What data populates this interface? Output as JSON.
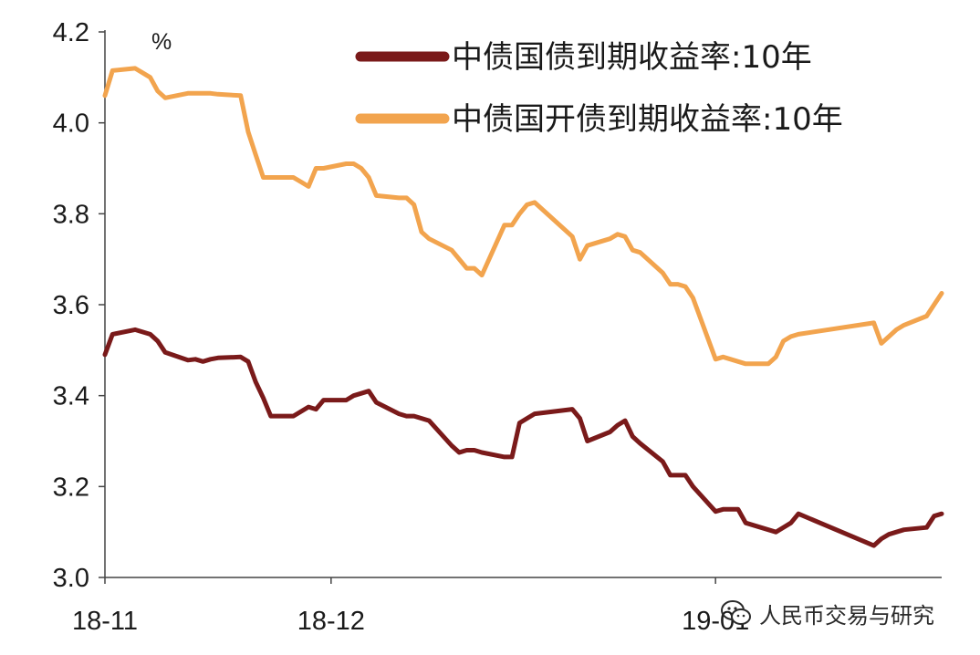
{
  "chart_data": {
    "type": "line",
    "unit": "%",
    "ylim": [
      3.0,
      4.2
    ],
    "yticks": [
      "3.0",
      "3.2",
      "3.4",
      "3.6",
      "3.8",
      "4.0",
      "4.2"
    ],
    "xticks": [
      "18-11",
      "18-12",
      "19-01"
    ],
    "legend_position": "top-right",
    "grid": false,
    "series": [
      {
        "name": "中债国债到期收益率:10年",
        "color": "#7a1a1a",
        "points": [
          [
            "2018-11-01",
            3.49
          ],
          [
            "2018-11-02",
            3.535
          ],
          [
            "2018-11-05",
            3.545
          ],
          [
            "2018-11-06",
            3.54
          ],
          [
            "2018-11-07",
            3.535
          ],
          [
            "2018-11-08",
            3.52
          ],
          [
            "2018-11-09",
            3.495
          ],
          [
            "2018-11-12",
            3.478
          ],
          [
            "2018-11-13",
            3.48
          ],
          [
            "2018-11-14",
            3.475
          ],
          [
            "2018-11-15",
            3.48
          ],
          [
            "2018-11-16",
            3.483
          ],
          [
            "2018-11-19",
            3.485
          ],
          [
            "2018-11-20",
            3.475
          ],
          [
            "2018-11-21",
            3.43
          ],
          [
            "2018-11-22",
            3.395
          ],
          [
            "2018-11-23",
            3.355
          ],
          [
            "2018-11-26",
            3.355
          ],
          [
            "2018-11-27",
            3.365
          ],
          [
            "2018-11-28",
            3.375
          ],
          [
            "2018-11-29",
            3.37
          ],
          [
            "2018-11-30",
            3.39
          ],
          [
            "2018-12-03",
            3.39
          ],
          [
            "2018-12-04",
            3.4
          ],
          [
            "2018-12-05",
            3.405
          ],
          [
            "2018-12-06",
            3.41
          ],
          [
            "2018-12-07",
            3.385
          ],
          [
            "2018-12-10",
            3.36
          ],
          [
            "2018-12-11",
            3.355
          ],
          [
            "2018-12-12",
            3.355
          ],
          [
            "2018-12-13",
            3.35
          ],
          [
            "2018-12-14",
            3.345
          ],
          [
            "2018-12-17",
            3.29
          ],
          [
            "2018-12-18",
            3.275
          ],
          [
            "2018-12-19",
            3.28
          ],
          [
            "2018-12-20",
            3.28
          ],
          [
            "2018-12-21",
            3.275
          ],
          [
            "2018-12-24",
            3.265
          ],
          [
            "2018-12-25",
            3.265
          ],
          [
            "2018-12-26",
            3.34
          ],
          [
            "2018-12-27",
            3.35
          ],
          [
            "2018-12-28",
            3.36
          ],
          [
            "2019-01-02",
            3.37
          ],
          [
            "2019-01-03",
            3.35
          ],
          [
            "2019-01-04",
            3.3
          ],
          [
            "2019-01-07",
            3.32
          ],
          [
            "2019-01-08",
            3.335
          ],
          [
            "2019-01-09",
            3.345
          ],
          [
            "2019-01-10",
            3.31
          ],
          [
            "2019-01-11",
            3.295
          ],
          [
            "2019-01-14",
            3.255
          ],
          [
            "2019-01-15",
            3.225
          ],
          [
            "2019-01-16",
            3.225
          ],
          [
            "2019-01-17",
            3.225
          ],
          [
            "2019-01-18",
            3.2
          ],
          [
            "2019-01-21",
            3.145
          ],
          [
            "2019-01-22",
            3.15
          ],
          [
            "2019-01-23",
            3.15
          ],
          [
            "2019-01-24",
            3.15
          ],
          [
            "2019-01-25",
            3.12
          ],
          [
            "2019-01-28",
            3.105
          ],
          [
            "2019-01-29",
            3.1
          ],
          [
            "2019-01-30",
            3.11
          ],
          [
            "2019-01-31",
            3.12
          ],
          [
            "2019-02-01",
            3.14
          ],
          [
            "2019-02-11",
            3.07
          ],
          [
            "2019-02-12",
            3.085
          ],
          [
            "2019-02-13",
            3.095
          ],
          [
            "2019-02-14",
            3.1
          ],
          [
            "2019-02-15",
            3.105
          ],
          [
            "2019-02-18",
            3.11
          ],
          [
            "2019-02-19",
            3.135
          ],
          [
            "2019-02-20",
            3.14
          ]
        ]
      },
      {
        "name": "中债国开债到期收益率:10年",
        "color": "#f2a44e",
        "points": [
          [
            "2018-11-01",
            4.06
          ],
          [
            "2018-11-02",
            4.115
          ],
          [
            "2018-11-05",
            4.12
          ],
          [
            "2018-11-06",
            4.11
          ],
          [
            "2018-11-07",
            4.1
          ],
          [
            "2018-11-08",
            4.07
          ],
          [
            "2018-11-09",
            4.055
          ],
          [
            "2018-11-12",
            4.065
          ],
          [
            "2018-11-13",
            4.065
          ],
          [
            "2018-11-14",
            4.065
          ],
          [
            "2018-11-15",
            4.065
          ],
          [
            "2018-11-16",
            4.063
          ],
          [
            "2018-11-19",
            4.06
          ],
          [
            "2018-11-20",
            3.98
          ],
          [
            "2018-11-21",
            3.93
          ],
          [
            "2018-11-22",
            3.88
          ],
          [
            "2018-11-23",
            3.88
          ],
          [
            "2018-11-26",
            3.88
          ],
          [
            "2018-11-27",
            3.87
          ],
          [
            "2018-11-28",
            3.86
          ],
          [
            "2018-11-29",
            3.9
          ],
          [
            "2018-11-30",
            3.9
          ],
          [
            "2018-12-03",
            3.91
          ],
          [
            "2018-12-04",
            3.91
          ],
          [
            "2018-12-05",
            3.9
          ],
          [
            "2018-12-06",
            3.88
          ],
          [
            "2018-12-07",
            3.84
          ],
          [
            "2018-12-10",
            3.835
          ],
          [
            "2018-12-11",
            3.835
          ],
          [
            "2018-12-12",
            3.82
          ],
          [
            "2018-12-13",
            3.76
          ],
          [
            "2018-12-14",
            3.745
          ],
          [
            "2018-12-17",
            3.72
          ],
          [
            "2018-12-18",
            3.7
          ],
          [
            "2018-12-19",
            3.68
          ],
          [
            "2018-12-20",
            3.68
          ],
          [
            "2018-12-21",
            3.665
          ],
          [
            "2018-12-24",
            3.775
          ],
          [
            "2018-12-25",
            3.775
          ],
          [
            "2018-12-26",
            3.8
          ],
          [
            "2018-12-27",
            3.82
          ],
          [
            "2018-12-28",
            3.825
          ],
          [
            "2019-01-02",
            3.75
          ],
          [
            "2019-01-03",
            3.7
          ],
          [
            "2019-01-04",
            3.73
          ],
          [
            "2019-01-07",
            3.745
          ],
          [
            "2019-01-08",
            3.755
          ],
          [
            "2019-01-09",
            3.75
          ],
          [
            "2019-01-10",
            3.72
          ],
          [
            "2019-01-11",
            3.715
          ],
          [
            "2019-01-14",
            3.67
          ],
          [
            "2019-01-15",
            3.645
          ],
          [
            "2019-01-16",
            3.645
          ],
          [
            "2019-01-17",
            3.64
          ],
          [
            "2019-01-18",
            3.615
          ],
          [
            "2019-01-21",
            3.48
          ],
          [
            "2019-01-22",
            3.485
          ],
          [
            "2019-01-23",
            3.48
          ],
          [
            "2019-01-24",
            3.475
          ],
          [
            "2019-01-25",
            3.47
          ],
          [
            "2019-01-28",
            3.47
          ],
          [
            "2019-01-29",
            3.485
          ],
          [
            "2019-01-30",
            3.52
          ],
          [
            "2019-01-31",
            3.53
          ],
          [
            "2019-02-01",
            3.535
          ],
          [
            "2019-02-11",
            3.56
          ],
          [
            "2019-02-12",
            3.515
          ],
          [
            "2019-02-13",
            3.53
          ],
          [
            "2019-02-14",
            3.545
          ],
          [
            "2019-02-15",
            3.555
          ],
          [
            "2019-02-18",
            3.575
          ],
          [
            "2019-02-19",
            3.6
          ],
          [
            "2019-02-20",
            3.625
          ]
        ]
      }
    ]
  },
  "watermark": {
    "text": "人民币交易与研究",
    "icon": "wechat-icon"
  }
}
